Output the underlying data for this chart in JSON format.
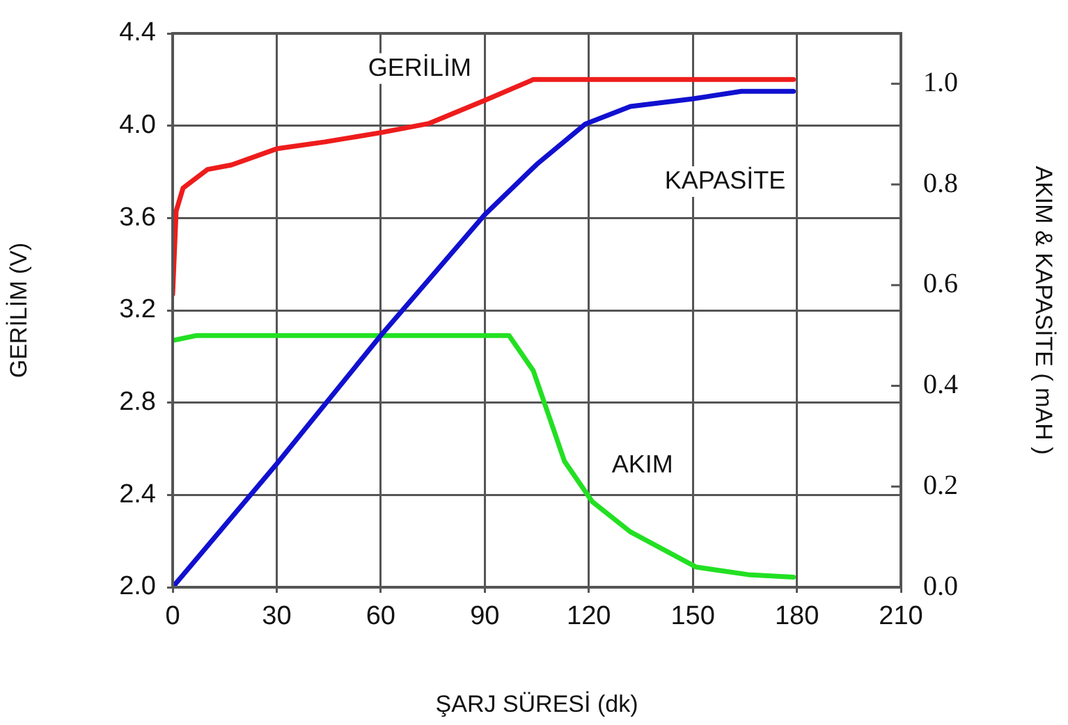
{
  "chart_data": {
    "type": "line",
    "xlabel": "ŞARJ SÜRESİ (dk)",
    "ylabel": "GERİLİM (V)",
    "y2label": "AKIM & KAPASİTE ( mAH )",
    "xlim": [
      0,
      210
    ],
    "xticks": [
      0,
      30,
      60,
      90,
      120,
      150,
      180,
      210
    ],
    "ylim": [
      2.0,
      4.4
    ],
    "yticks": [
      {
        "value": 2.0,
        "label": "2.0"
      },
      2.4,
      2.8,
      3.2,
      3.6,
      {
        "value": 4.0,
        "label": "4.0"
      },
      4.4
    ],
    "y2lim": [
      0,
      1.1
    ],
    "y2ticks": [
      {
        "value": 0,
        "label": "0.0"
      },
      0.2,
      0.4,
      0.6,
      0.8,
      {
        "value": 1.0,
        "label": "1.0"
      }
    ],
    "grid": true,
    "legend": false,
    "marker": "none",
    "line_style": "solid",
    "series": [
      {
        "name": "GERİLİM",
        "color": "#ee1c1c",
        "x": [
          0,
          1,
          3,
          10,
          17,
          30,
          44,
          60,
          74,
          90,
          104,
          179
        ],
        "values": [
          3.27,
          3.63,
          3.73,
          3.81,
          3.83,
          3.9,
          3.93,
          3.97,
          4.01,
          4.11,
          4.2,
          4.2
        ]
      },
      {
        "name": "KAPASİTE",
        "color": "#1010d0",
        "axis": "y2",
        "x": [
          0,
          30,
          60,
          90,
          105,
          119,
          132,
          150,
          164,
          179
        ],
        "values": [
          0,
          0.245,
          0.5,
          0.74,
          0.84,
          0.92,
          0.955,
          0.97,
          0.985,
          0.985
        ]
      },
      {
        "name": "AKIM",
        "color": "#22e022",
        "axis": "y2",
        "x": [
          0,
          7,
          97,
          104,
          109,
          113,
          121,
          132,
          151,
          166,
          179
        ],
        "values": [
          0.49,
          0.5,
          0.5,
          0.43,
          0.33,
          0.25,
          0.17,
          0.11,
          0.04,
          0.025,
          0.02
        ]
      }
    ]
  }
}
